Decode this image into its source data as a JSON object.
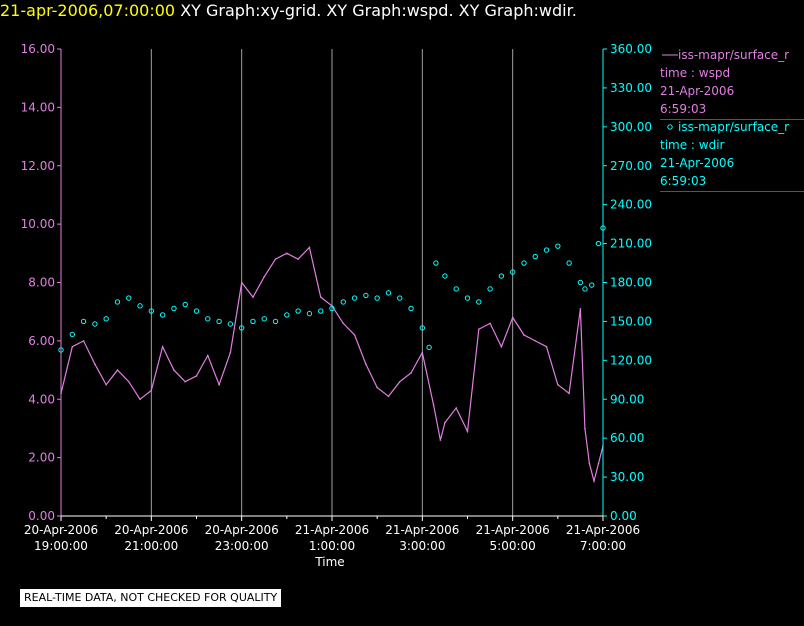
{
  "header": {
    "timestamp": "21-apr-2006,07:00:00",
    "graphs": [
      "XY Graph:xy-grid.",
      "XY Graph:wspd.",
      "XY Graph:wdir."
    ]
  },
  "legend": {
    "wspd": {
      "name": "iss-mapr/surface_r",
      "var": "time : wspd",
      "date": "21-Apr-2006",
      "time": "6:59:03"
    },
    "wdir": {
      "name": "iss-mapr/surface_r",
      "var": "time : wdir",
      "date": "21-Apr-2006",
      "time": "6:59:03"
    }
  },
  "footer": {
    "quality_note": "REAL-TIME DATA, NOT CHECKED FOR QUALITY"
  },
  "colors": {
    "wspd": "#e07fe0",
    "wdir": "#00ffff",
    "left_axis": "#e07fe0",
    "right_axis": "#00ffff",
    "grid": "#a0a0a0"
  },
  "chart_data": {
    "type": "line",
    "xlabel": "Time",
    "xlim_hours": [
      19.0,
      31.0
    ],
    "x_ticks": [
      {
        "hour": 19,
        "date": "20-Apr-2006",
        "time": "19:00:00"
      },
      {
        "hour": 21,
        "date": "20-Apr-2006",
        "time": "21:00:00"
      },
      {
        "hour": 23,
        "date": "20-Apr-2006",
        "time": "23:00:00"
      },
      {
        "hour": 25,
        "date": "21-Apr-2006",
        "time": "1:00:00"
      },
      {
        "hour": 27,
        "date": "21-Apr-2006",
        "time": "3:00:00"
      },
      {
        "hour": 29,
        "date": "21-Apr-2006",
        "time": "5:00:00"
      },
      {
        "hour": 31,
        "date": "21-Apr-2006",
        "time": "7:00:00"
      }
    ],
    "y_left": {
      "label": "wspd",
      "range": [
        0,
        16
      ],
      "ticks": [
        "0.00",
        "2.00",
        "4.00",
        "6.00",
        "8.00",
        "10.00",
        "12.00",
        "14.00",
        "16.00"
      ]
    },
    "y_right": {
      "label": "wdir",
      "range": [
        0,
        360
      ],
      "ticks": [
        "0.00",
        "30.00",
        "60.00",
        "90.00",
        "120.00",
        "150.00",
        "180.00",
        "210.00",
        "240.00",
        "270.00",
        "300.00",
        "330.00",
        "360.00"
      ]
    },
    "series": [
      {
        "name": "wspd",
        "axis": "left",
        "style": "line",
        "color": "#e07fe0",
        "x": [
          19.0,
          19.25,
          19.5,
          19.75,
          20.0,
          20.25,
          20.5,
          20.75,
          21.0,
          21.25,
          21.5,
          21.75,
          22.0,
          22.25,
          22.5,
          22.75,
          23.0,
          23.25,
          23.5,
          23.75,
          24.0,
          24.25,
          24.5,
          24.75,
          25.0,
          25.25,
          25.5,
          25.75,
          26.0,
          26.25,
          26.5,
          26.75,
          27.0,
          27.25,
          27.4,
          27.5,
          27.75,
          28.0,
          28.25,
          28.5,
          28.75,
          29.0,
          29.25,
          29.5,
          29.75,
          30.0,
          30.25,
          30.5,
          30.6,
          30.7,
          30.8,
          30.9,
          31.0
        ],
        "y": [
          4.2,
          5.8,
          6.0,
          5.2,
          4.5,
          5.0,
          4.6,
          4.0,
          4.3,
          5.8,
          5.0,
          4.6,
          4.8,
          5.5,
          4.5,
          5.6,
          8.0,
          7.5,
          8.2,
          8.8,
          9.0,
          8.8,
          9.2,
          7.5,
          7.2,
          6.6,
          6.2,
          5.2,
          4.4,
          4.1,
          4.6,
          4.9,
          5.6,
          3.8,
          2.6,
          3.2,
          3.7,
          2.9,
          6.4,
          6.6,
          5.8,
          6.8,
          6.2,
          6.0,
          5.8,
          4.5,
          4.2,
          7.1,
          3.0,
          1.8,
          1.2,
          1.8,
          2.4
        ]
      },
      {
        "name": "wdir",
        "axis": "right",
        "style": "points",
        "color": "#00ffff",
        "x": [
          19.0,
          19.25,
          19.5,
          19.75,
          20.0,
          20.25,
          20.5,
          20.75,
          21.0,
          21.25,
          21.5,
          21.75,
          22.0,
          22.25,
          22.5,
          22.75,
          23.0,
          23.25,
          23.5,
          23.75,
          24.0,
          24.25,
          24.5,
          24.75,
          25.0,
          25.25,
          25.5,
          25.75,
          26.0,
          26.25,
          26.5,
          26.75,
          27.0,
          27.15,
          27.3,
          27.5,
          27.75,
          28.0,
          28.25,
          28.5,
          28.75,
          29.0,
          29.25,
          29.5,
          29.75,
          30.0,
          30.25,
          30.5,
          30.6,
          30.75,
          30.9,
          31.0
        ],
        "y": [
          128,
          140,
          150,
          148,
          152,
          165,
          168,
          162,
          158,
          155,
          160,
          163,
          158,
          152,
          150,
          148,
          145,
          150,
          152,
          150,
          155,
          158,
          156,
          158,
          160,
          165,
          168,
          170,
          168,
          172,
          168,
          160,
          145,
          130,
          195,
          185,
          175,
          168,
          165,
          175,
          185,
          188,
          195,
          200,
          205,
          208,
          195,
          180,
          175,
          178,
          210,
          222
        ]
      }
    ]
  }
}
